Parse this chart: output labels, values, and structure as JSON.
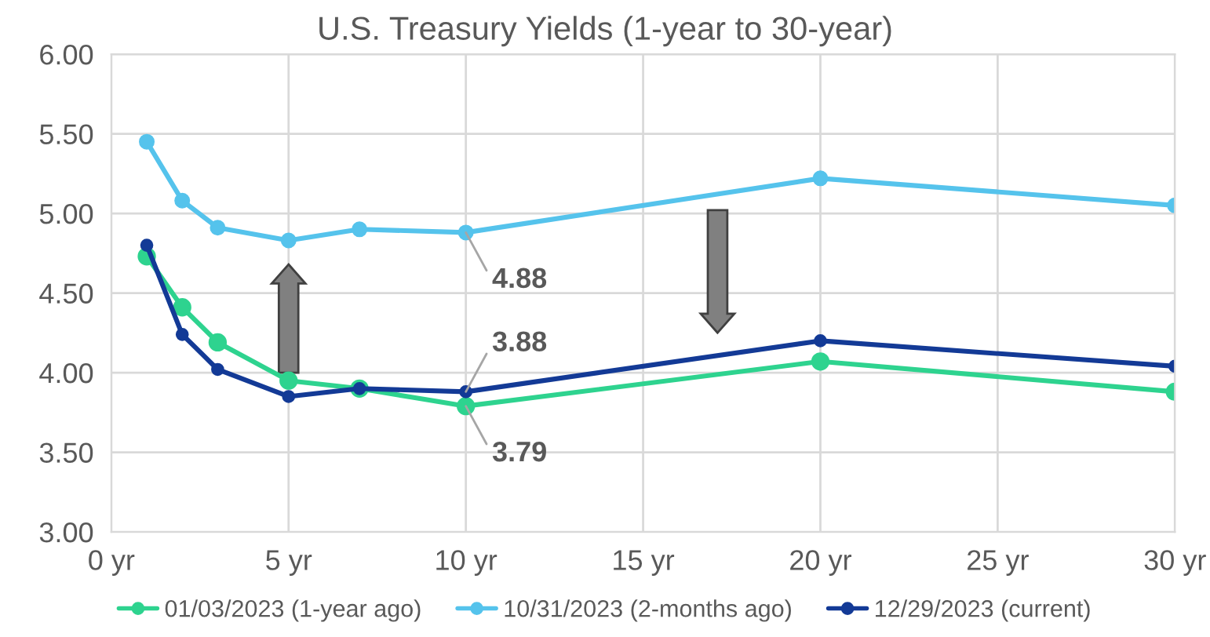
{
  "chart_data": {
    "type": "line",
    "title": "U.S. Treasury Yields (1-year to 30-year)",
    "x": [
      1,
      2,
      3,
      5,
      7,
      10,
      20,
      30
    ],
    "series": [
      {
        "name": "01/03/2023 (1-year ago)",
        "color": "#2ed38f",
        "values": [
          4.73,
          4.41,
          4.19,
          3.95,
          3.9,
          3.79,
          4.07,
          3.88
        ],
        "value_labels": [
          null,
          null,
          null,
          null,
          null,
          "3.79",
          null,
          null
        ]
      },
      {
        "name": "10/31/2023 (2-months ago)",
        "color": "#55c3ec",
        "values": [
          5.45,
          5.08,
          4.91,
          4.83,
          4.9,
          4.88,
          5.22,
          5.05
        ],
        "value_labels": [
          null,
          null,
          null,
          null,
          null,
          "4.88",
          null,
          null
        ]
      },
      {
        "name": "12/29/2023 (current)",
        "color": "#133a96",
        "values": [
          4.8,
          4.24,
          4.02,
          3.85,
          3.9,
          3.88,
          4.2,
          4.04
        ],
        "value_labels": [
          null,
          null,
          null,
          null,
          null,
          "3.88",
          null,
          null
        ]
      }
    ],
    "xlim": [
      0,
      30
    ],
    "xticks": [
      {
        "value": 0,
        "label": "0 yr"
      },
      {
        "value": 5,
        "label": "5 yr"
      },
      {
        "value": 10,
        "label": "10 yr"
      },
      {
        "value": 15,
        "label": "15 yr"
      },
      {
        "value": 20,
        "label": "20 yr"
      },
      {
        "value": 25,
        "label": "25 yr"
      },
      {
        "value": 30,
        "label": "30 yr"
      }
    ],
    "ylim": [
      3.0,
      6.0
    ],
    "yticks": [
      {
        "value": 3.0,
        "label": "3.00"
      },
      {
        "value": 3.5,
        "label": "3.50"
      },
      {
        "value": 4.0,
        "label": "4.00"
      },
      {
        "value": 4.5,
        "label": "4.50"
      },
      {
        "value": 5.0,
        "label": "5.00"
      },
      {
        "value": 5.5,
        "label": "5.50"
      },
      {
        "value": 6.0,
        "label": "6.00"
      }
    ],
    "grid": true,
    "legend": "bottom",
    "marker": "circle",
    "line_style": "solid"
  }
}
